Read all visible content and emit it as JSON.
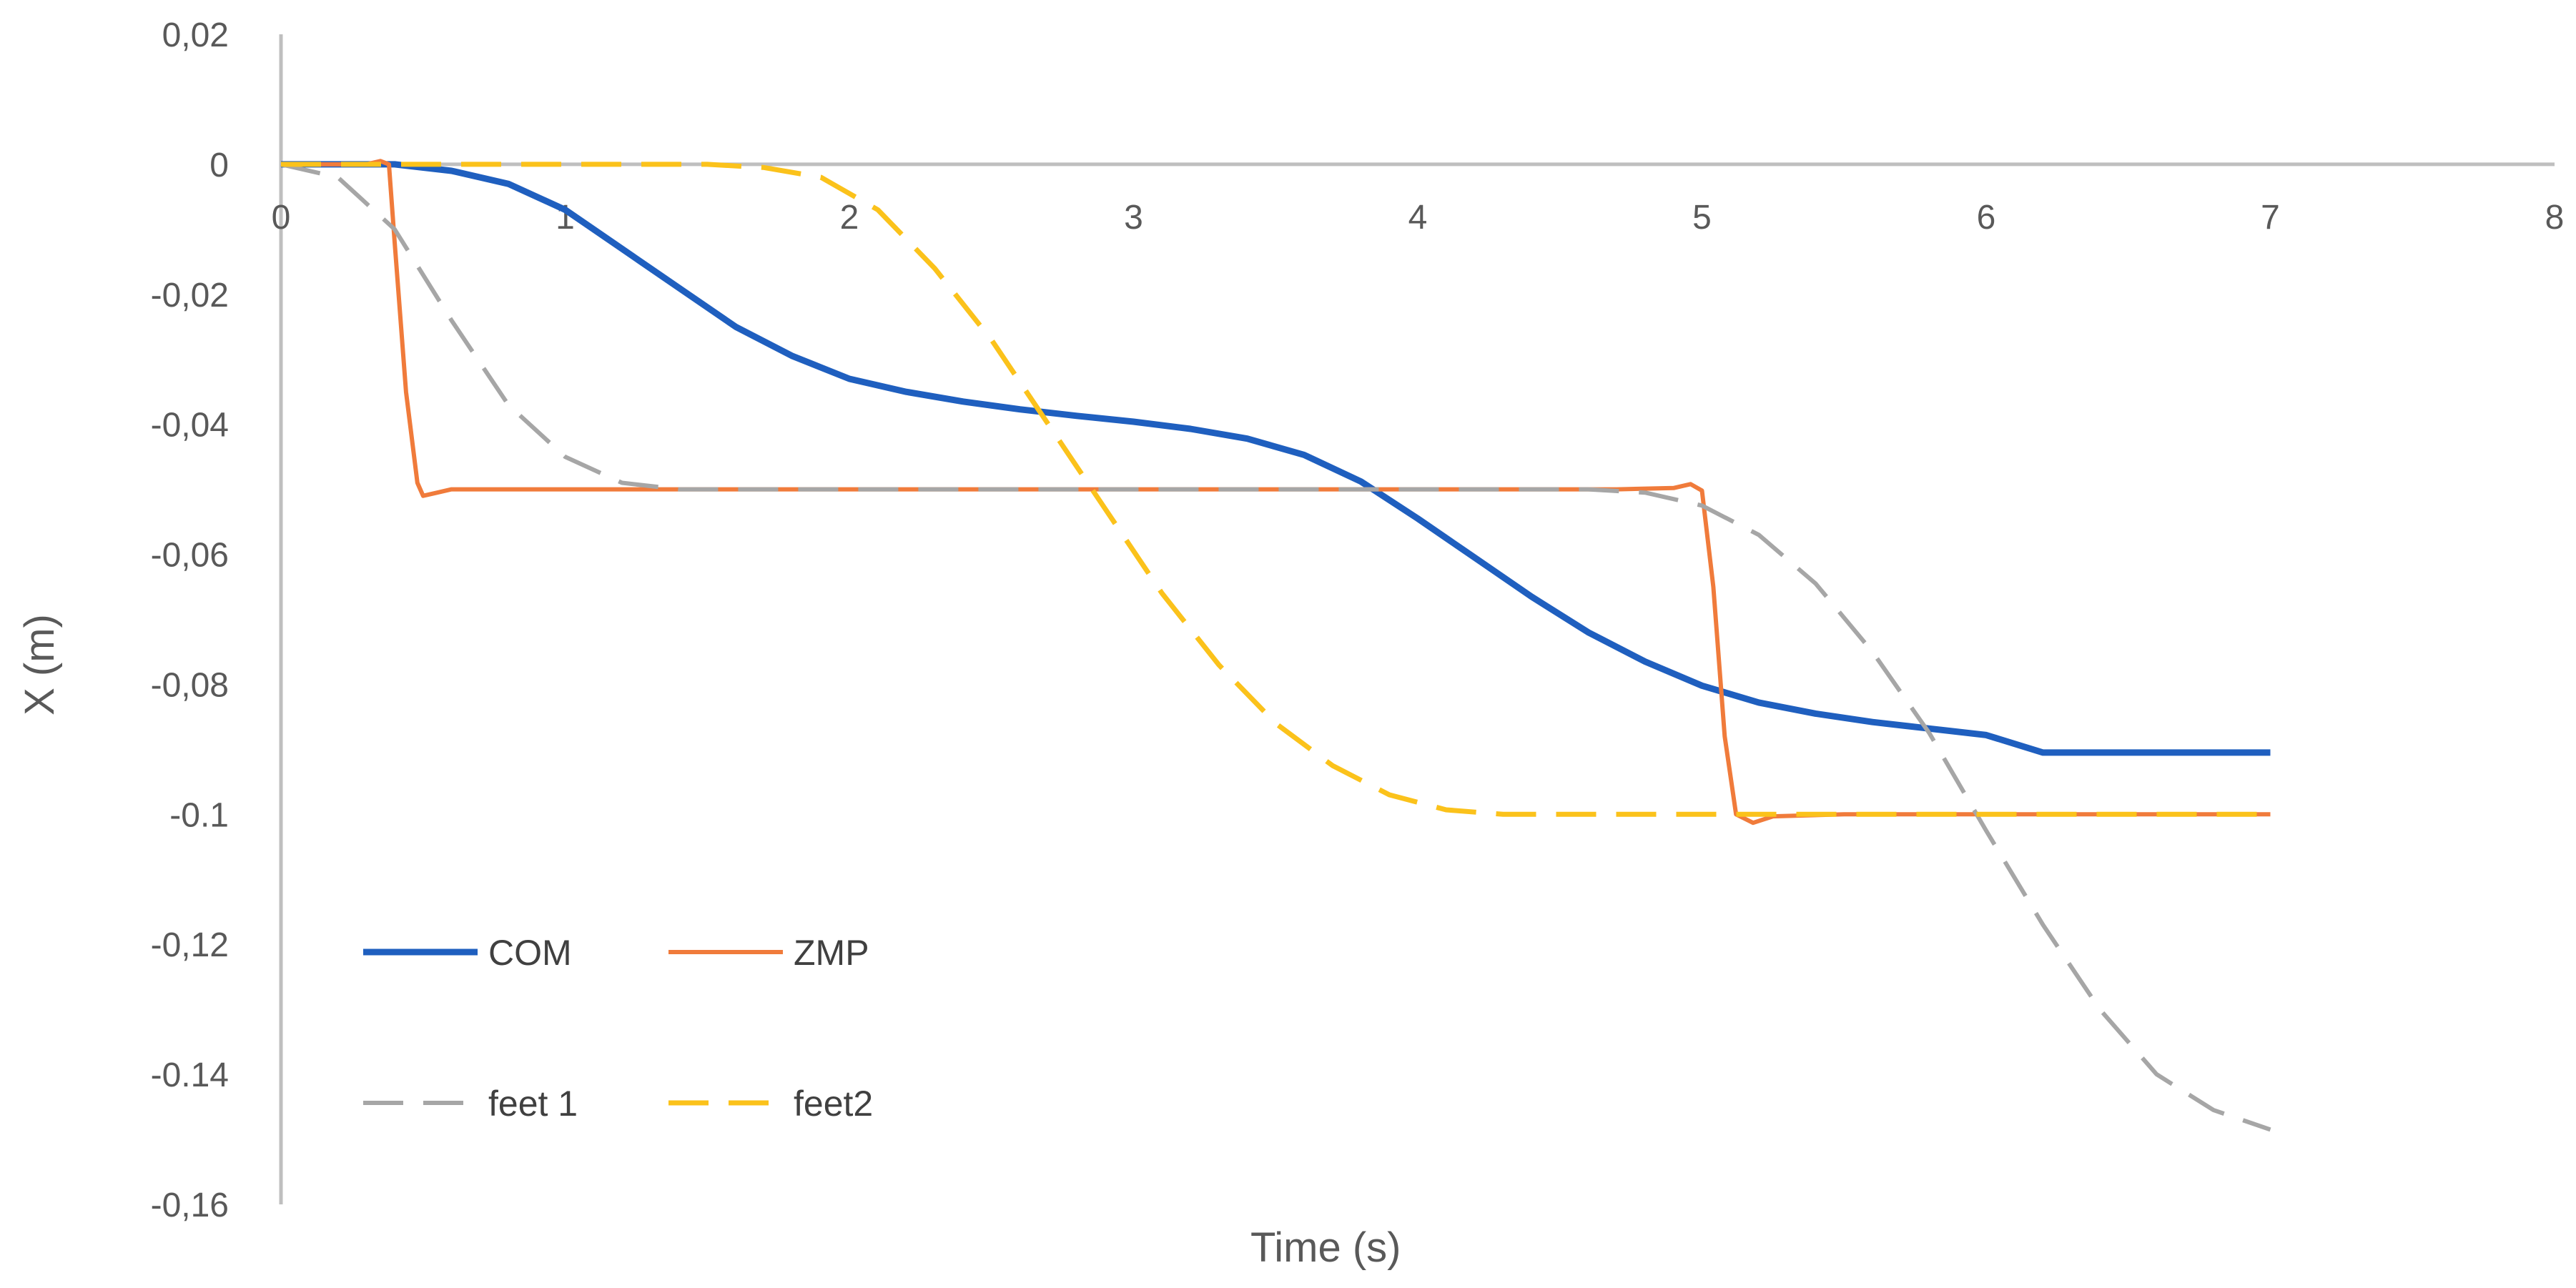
{
  "chart_data": {
    "type": "line",
    "title": "",
    "xlabel": "Time (s)",
    "ylabel": "X (m)",
    "xlim": [
      0,
      8
    ],
    "ylim": [
      -0.16,
      0.02
    ],
    "x_ticks": [
      0,
      1,
      2,
      3,
      4,
      5,
      6,
      7,
      8
    ],
    "x_tick_labels": [
      "0",
      "1",
      "2",
      "3",
      "4",
      "5",
      "6",
      "7",
      "8"
    ],
    "y_ticks": [
      0.02,
      0,
      -0.02,
      -0.04,
      -0.06,
      -0.08,
      -0.1,
      -0.12,
      -0.14,
      -0.16
    ],
    "y_tick_labels": [
      "0,02",
      "0",
      "-0,02",
      "-0,04",
      "-0,06",
      "-0,08",
      "-0.1",
      "-0,12",
      "-0.14",
      "-0,16"
    ],
    "grid": false,
    "legend": "inside-bottom-left",
    "series": [
      {
        "name": "COM",
        "color": "#1f5fbf",
        "dash": "solid",
        "x": [
          0,
          0.2,
          0.4,
          0.6,
          0.8,
          1.0,
          1.2,
          1.4,
          1.6,
          1.8,
          2.0,
          2.2,
          2.4,
          2.6,
          2.8,
          3.0,
          3.2,
          3.4,
          3.6,
          3.8,
          4.0,
          4.2,
          4.4,
          4.6,
          4.8,
          5.0,
          5.2,
          5.4,
          5.6,
          5.8,
          6.0,
          6.2,
          6.4,
          6.6,
          6.8,
          7.0
        ],
        "y": [
          0,
          0,
          0,
          -0.001,
          -0.003,
          -0.007,
          -0.013,
          -0.019,
          -0.025,
          -0.0295,
          -0.033,
          -0.035,
          -0.0365,
          -0.0377,
          -0.0387,
          -0.0396,
          -0.0407,
          -0.0422,
          -0.0447,
          -0.0488,
          -0.0545,
          -0.0605,
          -0.0665,
          -0.072,
          -0.0765,
          -0.0802,
          -0.0828,
          -0.0845,
          -0.0858,
          -0.0868,
          -0.0878,
          -0.0905,
          -0.0905,
          -0.0905,
          -0.0905,
          -0.0905
        ]
      },
      {
        "name": "ZMP",
        "color": "#f07b3b",
        "dash": "solid",
        "x": [
          0,
          0.3,
          0.35,
          0.38,
          0.4,
          0.44,
          0.48,
          0.5,
          0.55,
          0.6,
          1.0,
          2.0,
          3.0,
          4.0,
          4.7,
          4.9,
          4.96,
          5.0,
          5.04,
          5.08,
          5.12,
          5.18,
          5.25,
          5.5,
          6.0,
          6.5,
          7.0
        ],
        "y": [
          0,
          0,
          0.0005,
          0,
          -0.012,
          -0.035,
          -0.049,
          -0.051,
          -0.0505,
          -0.05,
          -0.05,
          -0.05,
          -0.05,
          -0.05,
          -0.05,
          -0.0498,
          -0.0492,
          -0.0502,
          -0.065,
          -0.088,
          -0.1,
          -0.1013,
          -0.1003,
          -0.1,
          -0.1,
          -0.1,
          -0.1
        ]
      },
      {
        "name": "feet 1",
        "color": "#a6a6a6",
        "dash": "dashed",
        "x": [
          0,
          0.2,
          0.4,
          0.6,
          0.8,
          1.0,
          1.2,
          1.4,
          1.6,
          2.0,
          3.0,
          4.0,
          4.6,
          4.8,
          5.0,
          5.2,
          5.4,
          5.6,
          5.8,
          6.0,
          6.2,
          6.4,
          6.6,
          6.8,
          7.0
        ],
        "y": [
          0,
          -0.002,
          -0.01,
          -0.024,
          -0.037,
          -0.045,
          -0.049,
          -0.05,
          -0.05,
          -0.05,
          -0.05,
          -0.05,
          -0.05,
          -0.0505,
          -0.0525,
          -0.057,
          -0.0645,
          -0.075,
          -0.0875,
          -0.1025,
          -0.117,
          -0.13,
          -0.14,
          -0.1455,
          -0.1485
        ]
      },
      {
        "name": "feet2",
        "color": "#fbc21b",
        "dash": "dashed",
        "x": [
          0,
          0.5,
          1.0,
          1.5,
          1.7,
          1.9,
          2.1,
          2.3,
          2.5,
          2.7,
          2.9,
          3.1,
          3.3,
          3.5,
          3.7,
          3.9,
          4.1,
          4.3,
          4.6,
          5.0,
          5.5,
          6.0,
          6.5,
          7.0
        ],
        "y": [
          0,
          0,
          0,
          0,
          -0.0005,
          -0.002,
          -0.007,
          -0.016,
          -0.027,
          -0.04,
          -0.053,
          -0.066,
          -0.077,
          -0.086,
          -0.0925,
          -0.097,
          -0.0993,
          -0.1,
          -0.1,
          -0.1,
          -0.1,
          -0.1,
          -0.1,
          -0.1
        ]
      }
    ]
  }
}
